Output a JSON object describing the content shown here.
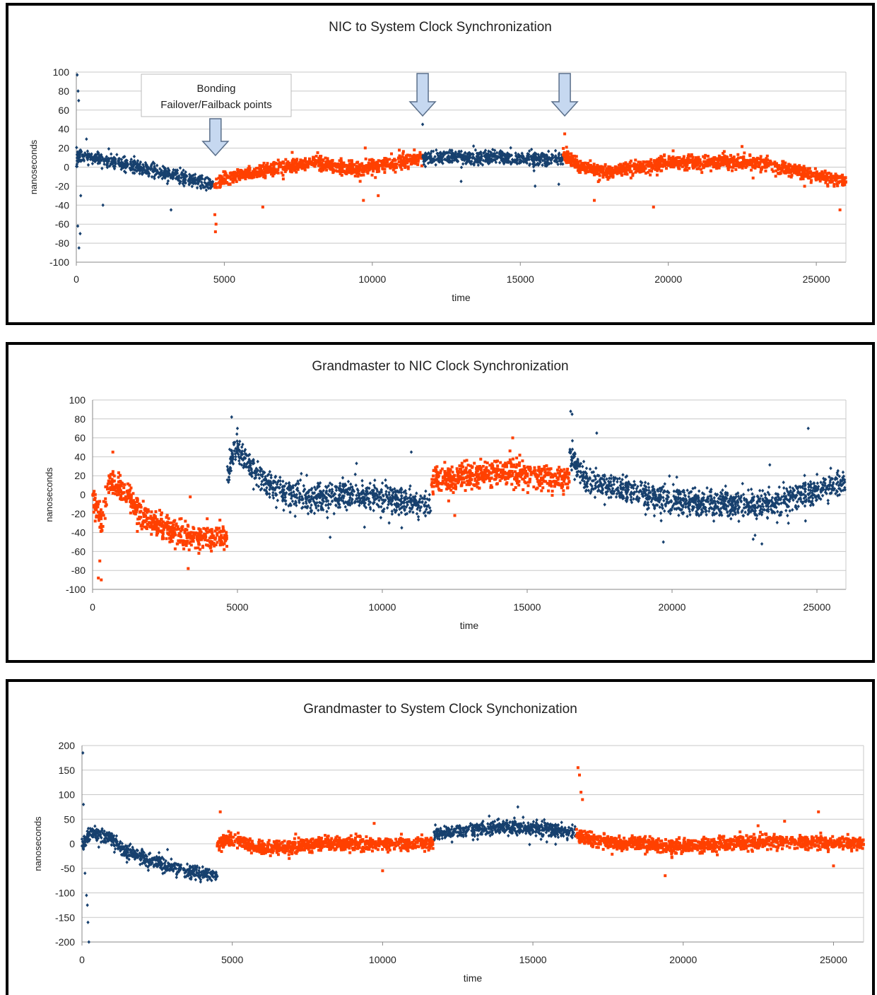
{
  "colors": {
    "blue": "#17406e",
    "orange": "#ff4000",
    "grid": "#c8c8c8",
    "arrow_fill": "#c6d8f0",
    "arrow_stroke": "#5a6f8a"
  },
  "chart_data": [
    {
      "type": "scatter",
      "title": "NIC to System  Clock Synchronization",
      "xlabel": "time",
      "ylabel": "nanoseconds",
      "xlim": [
        0,
        26000
      ],
      "ylim": [
        -100,
        100
      ],
      "xticks": [
        0,
        5000,
        10000,
        15000,
        20000,
        25000
      ],
      "yticks": [
        -100,
        -80,
        -60,
        -40,
        -20,
        0,
        20,
        40,
        60,
        80,
        100
      ],
      "grid": true,
      "annotation": {
        "text_line1": "Bonding",
        "text_line2": "Failover/Failback points",
        "arrows_at_x": [
          4700,
          11700,
          16500
        ]
      },
      "series": [
        {
          "color": "blue",
          "x_range": [
            0,
            4650
          ],
          "trend": [
            [
              0,
              10
            ],
            [
              300,
              12
            ],
            [
              2000,
              0
            ],
            [
              4600,
              -18
            ]
          ],
          "spread": 6,
          "outliers": [
            [
              30,
              97
            ],
            [
              60,
              80
            ],
            [
              80,
              70
            ],
            [
              50,
              -62
            ],
            [
              90,
              -85
            ],
            [
              130,
              -70
            ],
            [
              150,
              -30
            ],
            [
              900,
              -40
            ],
            [
              3200,
              -45
            ]
          ]
        },
        {
          "color": "orange",
          "x_range": [
            4650,
            11700
          ],
          "trend": [
            [
              4650,
              -18
            ],
            [
              5500,
              -8
            ],
            [
              8000,
              5
            ],
            [
              9500,
              -2
            ],
            [
              11700,
              10
            ]
          ],
          "spread": 6,
          "outliers": [
            [
              4700,
              -68
            ],
            [
              4720,
              -60
            ],
            [
              4680,
              -50
            ],
            [
              6300,
              -42
            ],
            [
              9700,
              -35
            ],
            [
              10200,
              -30
            ]
          ]
        },
        {
          "color": "blue",
          "x_range": [
            11700,
            16450
          ],
          "trend": [
            [
              11700,
              10
            ],
            [
              14000,
              10
            ],
            [
              16450,
              8
            ]
          ],
          "spread": 6,
          "outliers": [
            [
              11700,
              45
            ],
            [
              13000,
              -15
            ],
            [
              15500,
              -20
            ],
            [
              16300,
              -18
            ]
          ]
        },
        {
          "color": "orange",
          "x_range": [
            16450,
            26000
          ],
          "trend": [
            [
              16450,
              15
            ],
            [
              17000,
              0
            ],
            [
              18000,
              -5
            ],
            [
              20000,
              5
            ],
            [
              23000,
              5
            ],
            [
              26000,
              -15
            ]
          ],
          "spread": 6,
          "outliers": [
            [
              16500,
              35
            ],
            [
              17500,
              -35
            ],
            [
              19500,
              -42
            ],
            [
              25800,
              -45
            ]
          ]
        }
      ]
    },
    {
      "type": "scatter",
      "title": "Grandmaster  to NIC  Clock Synchronization",
      "xlabel": "time",
      "ylabel": "nanoseconds",
      "xlim": [
        0,
        26000
      ],
      "ylim": [
        -100,
        100
      ],
      "xticks": [
        0,
        5000,
        10000,
        15000,
        20000,
        25000
      ],
      "yticks": [
        -100,
        -80,
        -60,
        -40,
        -20,
        0,
        20,
        40,
        60,
        80,
        100
      ],
      "grid": true,
      "series": [
        {
          "color": "orange",
          "x_range": [
            0,
            4650
          ],
          "trend": [
            [
              0,
              0
            ],
            [
              300,
              -30
            ],
            [
              600,
              15
            ],
            [
              1200,
              0
            ],
            [
              1800,
              -25
            ],
            [
              2400,
              -35
            ],
            [
              3500,
              -45
            ],
            [
              4600,
              -45
            ]
          ],
          "spread": 12,
          "outliers": [
            [
              200,
              -88
            ],
            [
              300,
              -90
            ],
            [
              250,
              -70
            ],
            [
              700,
              45
            ],
            [
              3300,
              -78
            ]
          ]
        },
        {
          "color": "blue",
          "x_range": [
            4650,
            11700
          ],
          "trend": [
            [
              4650,
              20
            ],
            [
              4900,
              50
            ],
            [
              6000,
              10
            ],
            [
              7500,
              -5
            ],
            [
              9000,
              0
            ],
            [
              11700,
              -10
            ]
          ],
          "spread": 12,
          "outliers": [
            [
              4800,
              82
            ],
            [
              5000,
              70
            ],
            [
              8200,
              -45
            ],
            [
              11000,
              45
            ]
          ]
        },
        {
          "color": "orange",
          "x_range": [
            11700,
            16450
          ],
          "trend": [
            [
              11700,
              15
            ],
            [
              14000,
              25
            ],
            [
              16450,
              15
            ]
          ],
          "spread": 12,
          "outliers": [
            [
              14500,
              60
            ],
            [
              12500,
              -22
            ]
          ]
        },
        {
          "color": "blue",
          "x_range": [
            16450,
            26000
          ],
          "trend": [
            [
              16450,
              45
            ],
            [
              17000,
              15
            ],
            [
              19000,
              0
            ],
            [
              21000,
              -10
            ],
            [
              23500,
              -10
            ],
            [
              26000,
              15
            ]
          ],
          "spread": 12,
          "outliers": [
            [
              16500,
              88
            ],
            [
              16550,
              85
            ],
            [
              17400,
              65
            ],
            [
              19700,
              -50
            ],
            [
              22800,
              -47
            ],
            [
              23100,
              -52
            ],
            [
              24700,
              70
            ]
          ]
        }
      ]
    },
    {
      "type": "scatter",
      "title": "Grandmaster to System Clock Synchonization",
      "xlabel": "time",
      "ylabel": "nanoseconds",
      "xlim": [
        0,
        26000
      ],
      "ylim": [
        -200,
        200
      ],
      "xticks": [
        0,
        5000,
        10000,
        15000,
        20000,
        25000
      ],
      "yticks": [
        -200,
        -150,
        -100,
        -50,
        0,
        50,
        100,
        150,
        200
      ],
      "grid": true,
      "series": [
        {
          "color": "blue",
          "x_range": [
            0,
            4500
          ],
          "trend": [
            [
              0,
              0
            ],
            [
              300,
              20
            ],
            [
              800,
              15
            ],
            [
              1500,
              -15
            ],
            [
              2500,
              -40
            ],
            [
              3500,
              -55
            ],
            [
              4500,
              -65
            ]
          ],
          "spread": 12,
          "outliers": [
            [
              30,
              185
            ],
            [
              50,
              80
            ],
            [
              100,
              -60
            ],
            [
              150,
              -105
            ],
            [
              180,
              -125
            ],
            [
              200,
              -160
            ],
            [
              230,
              -200
            ]
          ]
        },
        {
          "color": "orange",
          "x_range": [
            4500,
            11700
          ],
          "trend": [
            [
              4500,
              0
            ],
            [
              5000,
              10
            ],
            [
              6000,
              -10
            ],
            [
              8000,
              0
            ],
            [
              11700,
              0
            ]
          ],
          "spread": 12,
          "outliers": [
            [
              4600,
              65
            ],
            [
              10000,
              -55
            ]
          ]
        },
        {
          "color": "blue",
          "x_range": [
            11700,
            16450
          ],
          "trend": [
            [
              11700,
              20
            ],
            [
              14000,
              35
            ],
            [
              16450,
              25
            ]
          ],
          "spread": 12,
          "outliers": [
            [
              14500,
              75
            ]
          ]
        },
        {
          "color": "orange",
          "x_range": [
            16450,
            26000
          ],
          "trend": [
            [
              16450,
              20
            ],
            [
              17000,
              5
            ],
            [
              20000,
              -5
            ],
            [
              23000,
              5
            ],
            [
              26000,
              0
            ]
          ],
          "spread": 12,
          "outliers": [
            [
              16500,
              155
            ],
            [
              16550,
              140
            ],
            [
              16600,
              105
            ],
            [
              16650,
              90
            ],
            [
              19400,
              -65
            ],
            [
              24500,
              65
            ],
            [
              25000,
              -45
            ]
          ]
        }
      ]
    }
  ]
}
